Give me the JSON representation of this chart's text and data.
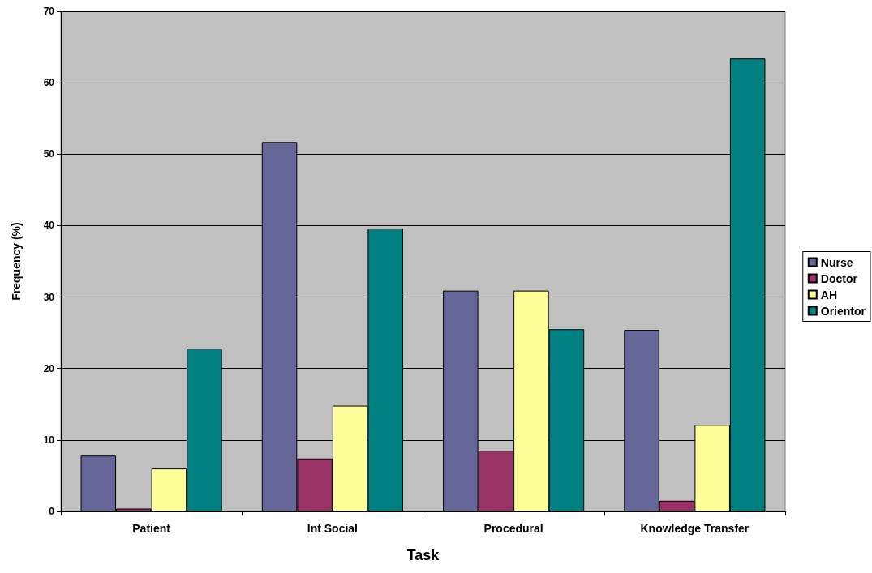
{
  "chart_data": {
    "type": "bar",
    "xlabel": "Task",
    "ylabel": "Frequency (%)",
    "categories": [
      "Patient",
      "Int Social",
      "Procedural",
      "Knowledge Transfer"
    ],
    "series": [
      {
        "name": "Nurse",
        "color": "#666699",
        "values": [
          7.8,
          51.7,
          30.9,
          25.4
        ]
      },
      {
        "name": "Doctor",
        "color": "#993366",
        "values": [
          0.4,
          7.4,
          8.5,
          1.5
        ]
      },
      {
        "name": "AH",
        "color": "#ffff99",
        "values": [
          6.0,
          14.8,
          30.9,
          12.1
        ]
      },
      {
        "name": "Orientor",
        "color": "#008080",
        "values": [
          22.8,
          39.6,
          25.5,
          63.4
        ]
      }
    ],
    "ylim": [
      0,
      70
    ],
    "yticks": [
      0,
      10,
      20,
      30,
      40,
      50,
      60,
      70
    ],
    "grid": "y",
    "legend": "right"
  }
}
